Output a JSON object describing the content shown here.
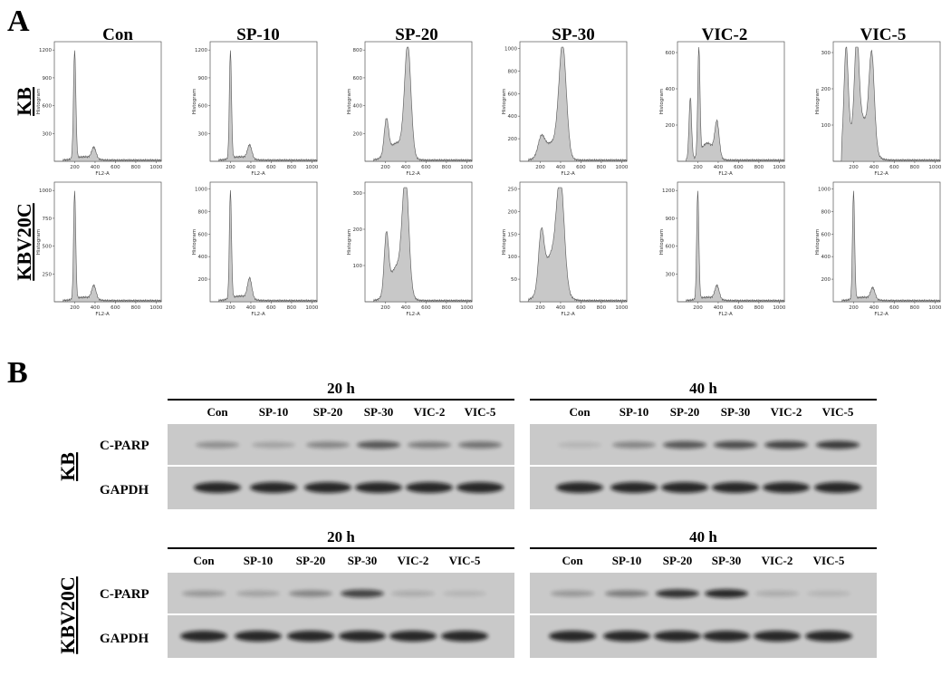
{
  "panel_a": {
    "label": "A",
    "columns": [
      "Con",
      "SP-10",
      "SP-20",
      "SP-30",
      "VIC-2",
      "VIC-5"
    ],
    "rows": [
      "KB",
      "KBV20C"
    ],
    "x_label": "FL2-A",
    "y_label": "Histogram",
    "x_ticks": [
      200,
      400,
      600,
      800,
      1000
    ],
    "y_ticks": [
      [
        [
          300,
          600,
          900,
          1200
        ],
        [
          300,
          600,
          900,
          1200
        ],
        [
          200,
          400,
          600,
          800
        ],
        [
          200,
          400,
          600,
          800,
          1000
        ],
        [
          200,
          400,
          600
        ],
        [
          100,
          200,
          300
        ]
      ],
      [
        [
          250,
          500,
          750,
          1000
        ],
        [
          200,
          400,
          600,
          800,
          1000
        ],
        [
          100,
          200,
          300
        ],
        [
          50,
          100,
          150,
          200,
          250
        ],
        [
          300,
          600,
          900,
          1200
        ],
        [
          200,
          400,
          600,
          800,
          1000
        ]
      ]
    ]
  },
  "panel_b": {
    "label": "B",
    "blocks": [
      {
        "row": "KB",
        "proteins": [
          "C-PARP",
          "GAPDH"
        ],
        "groups": [
          {
            "time": "20 h",
            "lanes": [
              "Con",
              "SP-10",
              "SP-20",
              "SP-30",
              "VIC-2",
              "VIC-5"
            ]
          },
          {
            "time": "40 h",
            "lanes": [
              "Con",
              "SP-10",
              "SP-20",
              "SP-30",
              "VIC-2",
              "VIC-5"
            ]
          }
        ]
      },
      {
        "row": "KBV20C",
        "proteins": [
          "C-PARP",
          "GAPDH"
        ],
        "groups": [
          {
            "time": "20 h",
            "lanes": [
              "Con",
              "SP-10",
              "SP-20",
              "SP-30",
              "VIC-2",
              "VIC-5"
            ]
          },
          {
            "time": "40 h",
            "lanes": [
              "Con",
              "SP-10",
              "SP-20",
              "SP-30",
              "VIC-2",
              "VIC-5"
            ]
          }
        ]
      }
    ]
  }
}
